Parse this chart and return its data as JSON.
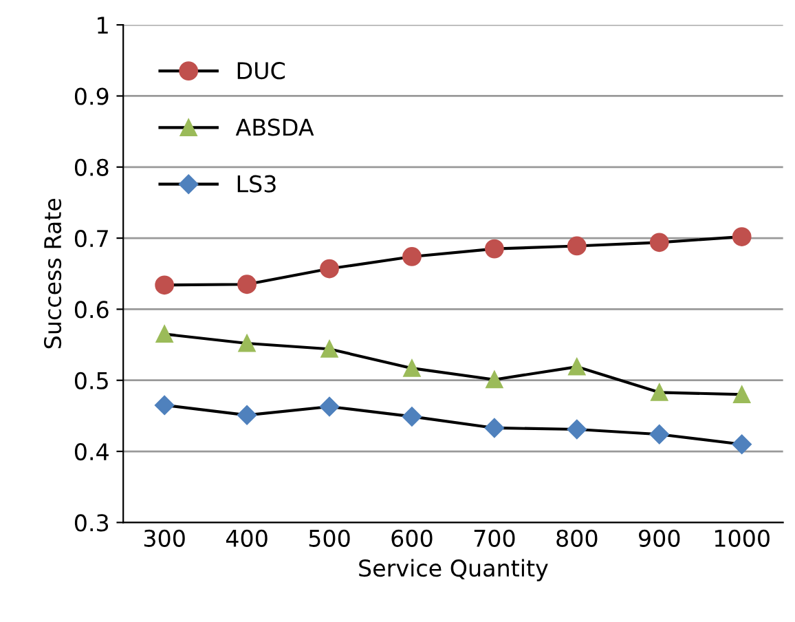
{
  "chart_data": {
    "type": "line",
    "xlabel": "Service Quantity",
    "ylabel": "Success Rate",
    "categories": [
      "300",
      "400",
      "500",
      "600",
      "700",
      "800",
      "900",
      "1000"
    ],
    "series": [
      {
        "name": "DUC",
        "color": "#c0504d",
        "marker": "circle",
        "values": [
          0.634,
          0.635,
          0.657,
          0.674,
          0.685,
          0.689,
          0.694,
          0.702
        ]
      },
      {
        "name": "ABSDA",
        "color": "#9bbb59",
        "marker": "triangle",
        "values": [
          0.565,
          0.552,
          0.544,
          0.517,
          0.501,
          0.519,
          0.483,
          0.48
        ]
      },
      {
        "name": "LS3",
        "color": "#4f81bd",
        "marker": "diamond",
        "values": [
          0.465,
          0.451,
          0.463,
          0.449,
          0.433,
          0.431,
          0.424,
          0.41
        ]
      }
    ],
    "ylim": [
      0.3,
      1
    ],
    "yticks": [
      0.3,
      0.4,
      0.5,
      0.6,
      0.7,
      0.8,
      0.9,
      1
    ],
    "grid": "y",
    "legend": "top left",
    "line_style": "solid"
  }
}
